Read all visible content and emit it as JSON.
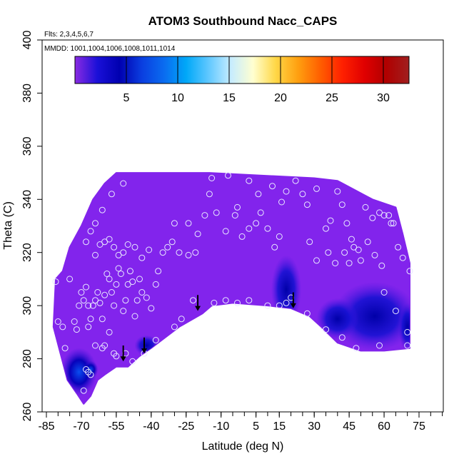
{
  "chart_data": {
    "type": "heatmap",
    "title": "ATOM3 Southbound Nacc_CAPS",
    "subtitle_flights": "Flts: 2,3,4,5,6,7",
    "subtitle_dates": "MMDD: 1001,1004,1006,1008,1011,1014",
    "xlabel": "Latitude (deg N)",
    "ylabel": "Theta (C)",
    "xlim": [
      -85,
      85
    ],
    "ylim": [
      260,
      400
    ],
    "xticks": [
      -85,
      -70,
      -55,
      -40,
      -25,
      -10,
      5,
      15,
      30,
      45,
      60,
      75
    ],
    "xticks_minor_step": 5,
    "yticks": [
      260,
      280,
      300,
      320,
      340,
      360,
      380,
      400
    ],
    "colorbar": {
      "min": 0,
      "max": 32.5,
      "ticks": [
        5,
        10,
        15,
        20,
        25,
        30
      ],
      "colors": [
        "#8a2be2",
        "#1a10d8",
        "#0000b0",
        "#0a3ee0",
        "#0a6cf0",
        "#00a8f8",
        "#60c8ff",
        "#c6ecff",
        "#ffffd0",
        "#ffd848",
        "#ffa010",
        "#ff6000",
        "#ff2000",
        "#e00000",
        "#b00000",
        "#a02020"
      ]
    },
    "field": {
      "background_value": 1.5,
      "upper_boundary": [
        {
          "lat": -81,
          "theta": 310
        },
        {
          "lat": -78,
          "theta": 313
        },
        {
          "lat": -75,
          "theta": 322
        },
        {
          "lat": -70,
          "theta": 330
        },
        {
          "lat": -65,
          "theta": 340
        },
        {
          "lat": -60,
          "theta": 346
        },
        {
          "lat": -55,
          "theta": 350
        },
        {
          "lat": -15,
          "theta": 350
        },
        {
          "lat": 30,
          "theta": 348
        },
        {
          "lat": 40,
          "theta": 347
        },
        {
          "lat": 55,
          "theta": 340
        },
        {
          "lat": 65,
          "theta": 337
        },
        {
          "lat": 68,
          "theta": 327
        },
        {
          "lat": 71,
          "theta": 316
        }
      ],
      "lower_boundary": [
        {
          "lat": 71,
          "theta": 284
        },
        {
          "lat": 60,
          "theta": 283
        },
        {
          "lat": 50,
          "theta": 283
        },
        {
          "lat": 40,
          "theta": 286
        },
        {
          "lat": 33,
          "theta": 292
        },
        {
          "lat": 28,
          "theta": 296
        },
        {
          "lat": 20,
          "theta": 299
        },
        {
          "lat": 10,
          "theta": 300
        },
        {
          "lat": -5,
          "theta": 301
        },
        {
          "lat": -14,
          "theta": 300
        },
        {
          "lat": -18,
          "theta": 297
        },
        {
          "lat": -22,
          "theta": 295
        },
        {
          "lat": -28,
          "theta": 292
        },
        {
          "lat": -34,
          "theta": 288
        },
        {
          "lat": -40,
          "theta": 284
        },
        {
          "lat": -45,
          "theta": 281
        },
        {
          "lat": -50,
          "theta": 277
        },
        {
          "lat": -55,
          "theta": 277
        },
        {
          "lat": -60,
          "theta": 274
        },
        {
          "lat": -63,
          "theta": 272
        },
        {
          "lat": -66,
          "theta": 266
        },
        {
          "lat": -69,
          "theta": 263
        },
        {
          "lat": -72,
          "theta": 267
        },
        {
          "lat": -76,
          "theta": 272
        },
        {
          "lat": -79,
          "theta": 282
        },
        {
          "lat": -82,
          "theta": 292
        }
      ],
      "enhanced_regions": [
        {
          "lat": -71,
          "theta": 275,
          "rx": 6,
          "ry": 7,
          "value": 5.0
        },
        {
          "lat": -66,
          "theta": 276,
          "rx": 2.5,
          "ry": 2.5,
          "value": 7.0
        },
        {
          "lat": 18,
          "theta": 306,
          "rx": 5,
          "ry": 10,
          "value": 4.0
        },
        {
          "lat": 56,
          "theta": 296,
          "rx": 14,
          "ry": 10,
          "value": 3.5
        },
        {
          "lat": 40,
          "theta": 295,
          "rx": 7,
          "ry": 6,
          "value": 3.0
        },
        {
          "lat": 70,
          "theta": 292,
          "rx": 3,
          "ry": 7,
          "value": 4.0
        },
        {
          "lat": -42,
          "theta": 285,
          "rx": 4,
          "ry": 3,
          "value": 2.8
        }
      ]
    },
    "arrows_lat_theta": [
      {
        "lat": -52,
        "theta": 283
      },
      {
        "lat": -43,
        "theta": 286
      },
      {
        "lat": -20,
        "theta": 302
      },
      {
        "lat": 21,
        "theta": 303
      }
    ],
    "sample_points": [
      [
        -81,
        309
      ],
      [
        -80,
        294
      ],
      [
        -78,
        292
      ],
      [
        -77,
        284
      ],
      [
        -75,
        310
      ],
      [
        -73,
        294
      ],
      [
        -72,
        291
      ],
      [
        -71,
        300
      ],
      [
        -70,
        305
      ],
      [
        -69,
        302
      ],
      [
        -68,
        307
      ],
      [
        -67,
        300
      ],
      [
        -67,
        292
      ],
      [
        -66,
        295
      ],
      [
        -65,
        300
      ],
      [
        -64,
        302
      ],
      [
        -63,
        305
      ],
      [
        -62,
        301
      ],
      [
        -61,
        295
      ],
      [
        -60,
        304
      ],
      [
        -59,
        312
      ],
      [
        -58,
        310
      ],
      [
        -58,
        290
      ],
      [
        -57,
        305
      ],
      [
        -56,
        300
      ],
      [
        -55,
        308
      ],
      [
        -54,
        314
      ],
      [
        -53,
        312
      ],
      [
        -52,
        298
      ],
      [
        -51,
        302
      ],
      [
        -50,
        308
      ],
      [
        -49,
        313
      ],
      [
        -48,
        309
      ],
      [
        -47,
        296
      ],
      [
        -46,
        302
      ],
      [
        -45,
        310
      ],
      [
        -44,
        305
      ],
      [
        -42,
        303
      ],
      [
        -40,
        299
      ],
      [
        -38,
        308
      ],
      [
        -37,
        313
      ],
      [
        -61,
        284
      ],
      [
        -60,
        285
      ],
      [
        -56,
        282
      ],
      [
        -55,
        281
      ],
      [
        -51,
        282
      ],
      [
        -48,
        279
      ],
      [
        -43,
        282
      ],
      [
        -38,
        287
      ],
      [
        -64,
        285
      ],
      [
        -68,
        276
      ],
      [
        -67,
        275
      ],
      [
        -66,
        274
      ],
      [
        -69,
        268
      ],
      [
        -64,
        319
      ],
      [
        -62,
        323
      ],
      [
        -60,
        324
      ],
      [
        -58,
        325
      ],
      [
        -56,
        322
      ],
      [
        -54,
        319
      ],
      [
        -52,
        320
      ],
      [
        -50,
        323
      ],
      [
        -47,
        322
      ],
      [
        -44,
        318
      ],
      [
        -41,
        321
      ],
      [
        -35,
        320
      ],
      [
        -31,
        324
      ],
      [
        -28,
        320
      ],
      [
        -24,
        319
      ],
      [
        -21,
        320
      ],
      [
        -68,
        324
      ],
      [
        -66,
        328
      ],
      [
        -64,
        331
      ],
      [
        -61,
        336
      ],
      [
        -57,
        342
      ],
      [
        -52,
        346
      ],
      [
        -33,
        322
      ],
      [
        -30,
        331
      ],
      [
        -24,
        331
      ],
      [
        -20,
        327
      ],
      [
        -17,
        334
      ],
      [
        -12,
        335
      ],
      [
        -8,
        328
      ],
      [
        -4,
        334
      ],
      [
        -1,
        326
      ],
      [
        2,
        329
      ],
      [
        5,
        331
      ],
      [
        7,
        335
      ],
      [
        10,
        329
      ],
      [
        13,
        322
      ],
      [
        15,
        326
      ],
      [
        -15,
        342
      ],
      [
        -14,
        348
      ],
      [
        -7,
        349
      ],
      [
        -3,
        337
      ],
      [
        2,
        347
      ],
      [
        6,
        342
      ],
      [
        12,
        345
      ],
      [
        16,
        339
      ],
      [
        18,
        343
      ],
      [
        22,
        347
      ],
      [
        25,
        342
      ],
      [
        27,
        338
      ],
      [
        31,
        344
      ],
      [
        35,
        329
      ],
      [
        37,
        332
      ],
      [
        40,
        343
      ],
      [
        42,
        338
      ],
      [
        44,
        331
      ],
      [
        46,
        325
      ],
      [
        49,
        321
      ],
      [
        52,
        337
      ],
      [
        55,
        333
      ],
      [
        58,
        335
      ],
      [
        62,
        334
      ],
      [
        64,
        331
      ],
      [
        66,
        322
      ],
      [
        68,
        318
      ],
      [
        71,
        313
      ],
      [
        60,
        334
      ],
      [
        63,
        331
      ],
      [
        28,
        324
      ],
      [
        31,
        317
      ],
      [
        36,
        320
      ],
      [
        39,
        316
      ],
      [
        43,
        320
      ],
      [
        45,
        316
      ],
      [
        47,
        322
      ],
      [
        50,
        317
      ],
      [
        53,
        324
      ],
      [
        56,
        319
      ],
      [
        59,
        315
      ],
      [
        27,
        297
      ],
      [
        35,
        291
      ],
      [
        42,
        288
      ],
      [
        48,
        284
      ],
      [
        58,
        285
      ],
      [
        70,
        285
      ],
      [
        -30,
        292
      ],
      [
        -27,
        295
      ],
      [
        -22,
        302
      ],
      [
        -13,
        301
      ],
      [
        -8,
        302
      ],
      [
        -3,
        301
      ],
      [
        2,
        302
      ],
      [
        10,
        300
      ],
      [
        15,
        300
      ],
      [
        18,
        301
      ],
      [
        20,
        303
      ],
      [
        60,
        305
      ],
      [
        65,
        298
      ],
      [
        70,
        290
      ]
    ]
  }
}
